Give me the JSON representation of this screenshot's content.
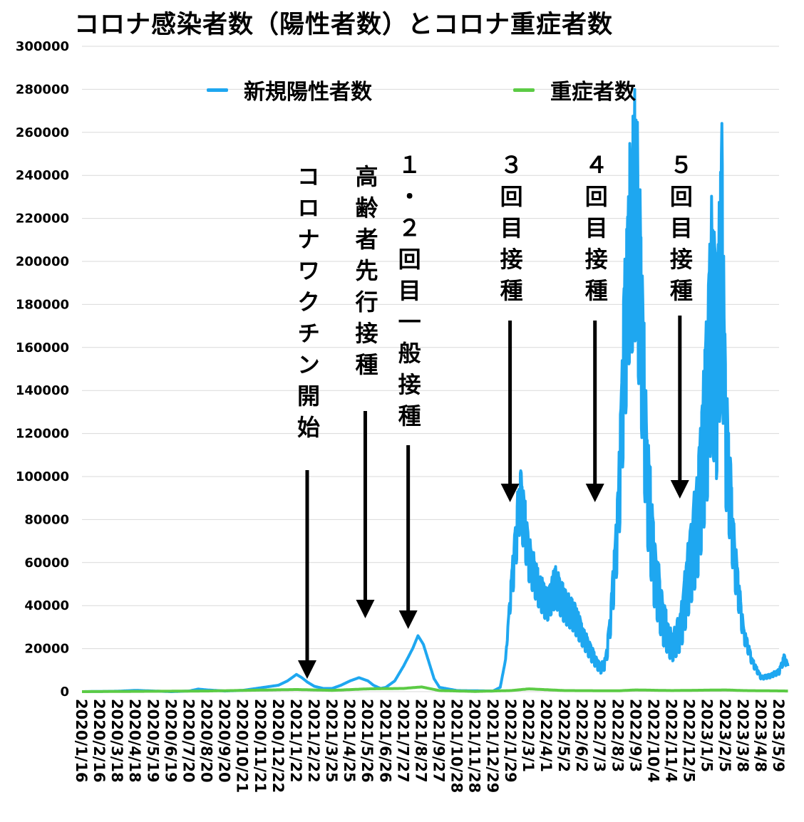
{
  "chart_data": {
    "type": "line",
    "title": "コロナ感染者数（陽性者数）とコロナ重症者数",
    "ylim": [
      0,
      300000
    ],
    "yticks": [
      0,
      20000,
      40000,
      60000,
      80000,
      100000,
      120000,
      140000,
      160000,
      180000,
      200000,
      220000,
      240000,
      260000,
      280000,
      300000
    ],
    "x_tick_labels": [
      "2020/1/16",
      "2020/2/16",
      "2020/3/18",
      "2020/4/18",
      "2020/5/19",
      "2020/6/19",
      "2020/7/20",
      "2020/8/20",
      "2020/9/20",
      "2020/10/21",
      "2020/11/21",
      "2020/12/22",
      "2021/1/22",
      "2021/2/22",
      "2021/3/25",
      "2021/4/25",
      "2021/5/26",
      "2021/6/26",
      "2021/7/27",
      "2021/8/27",
      "2021/9/27",
      "2021/10/28",
      "2021/11/28",
      "2021/12/29",
      "2022/1/29",
      "2022/3/1",
      "2022/4/1",
      "2022/5/2",
      "2022/6/2",
      "2022/7/3",
      "2022/8/3",
      "2022/9/3",
      "2022/10/4",
      "2022/11/4",
      "2022/12/5",
      "2023/1/5",
      "2023/2/5",
      "2023/3/8",
      "2023/4/8",
      "2023/5/9"
    ],
    "grid": true,
    "legend_position": "top",
    "series": [
      {
        "name": "新規陽性者数",
        "color": "#1EA7F0",
        "points": [
          [
            0,
            0
          ],
          [
            2,
            200
          ],
          [
            3,
            600
          ],
          [
            4,
            300
          ],
          [
            5,
            0
          ],
          [
            6,
            300
          ],
          [
            6.5,
            1200
          ],
          [
            7,
            800
          ],
          [
            8,
            300
          ],
          [
            9,
            600
          ],
          [
            10,
            1800
          ],
          [
            11,
            3000
          ],
          [
            11.5,
            5000
          ],
          [
            12,
            8000
          ],
          [
            12.3,
            6500
          ],
          [
            12.6,
            4500
          ],
          [
            13,
            2500
          ],
          [
            13.5,
            1500
          ],
          [
            14,
            1500
          ],
          [
            14.5,
            3000
          ],
          [
            15,
            5000
          ],
          [
            15.5,
            6500
          ],
          [
            16,
            5000
          ],
          [
            16.3,
            3000
          ],
          [
            16.7,
            1500
          ],
          [
            17,
            2000
          ],
          [
            17.5,
            5000
          ],
          [
            18,
            12000
          ],
          [
            18.5,
            20000
          ],
          [
            18.8,
            26000
          ],
          [
            19.1,
            22000
          ],
          [
            19.4,
            14000
          ],
          [
            19.7,
            6000
          ],
          [
            20,
            2000
          ],
          [
            21,
            500
          ],
          [
            23,
            300
          ],
          [
            23.4,
            2000
          ],
          [
            23.7,
            15000
          ],
          [
            24,
            50000
          ],
          [
            24.2,
            70000
          ],
          [
            24.5,
            100000
          ],
          [
            24.7,
            90000
          ],
          [
            25,
            70000
          ],
          [
            25.5,
            55000
          ],
          [
            26,
            45000
          ],
          [
            26.5,
            55000
          ],
          [
            27,
            45000
          ],
          [
            27.5,
            40000
          ],
          [
            28,
            30000
          ],
          [
            28.5,
            20000
          ],
          [
            29,
            12000
          ],
          [
            29.3,
            15000
          ],
          [
            29.6,
            40000
          ],
          [
            30,
            90000
          ],
          [
            30.3,
            170000
          ],
          [
            30.6,
            235000
          ],
          [
            31,
            262000
          ],
          [
            31.3,
            200000
          ],
          [
            31.6,
            120000
          ],
          [
            32,
            70000
          ],
          [
            32.5,
            40000
          ],
          [
            33,
            25000
          ],
          [
            33.5,
            35000
          ],
          [
            34,
            70000
          ],
          [
            34.5,
            100000
          ],
          [
            35,
            165000
          ],
          [
            35.2,
            210000
          ],
          [
            35.5,
            180000
          ],
          [
            35.8,
            245000
          ],
          [
            36,
            140000
          ],
          [
            36.5,
            70000
          ],
          [
            37,
            30000
          ],
          [
            37.5,
            15000
          ],
          [
            38,
            7000
          ],
          [
            38.5,
            8000
          ],
          [
            39,
            10000
          ],
          [
            39.3,
            17000
          ],
          [
            39.5,
            12000
          ]
        ],
        "noise": [
          [
            23.6,
            0.0
          ],
          [
            24.1,
            0.25
          ],
          [
            27.5,
            0.3
          ],
          [
            29.6,
            0.3
          ],
          [
            32.5,
            0.45
          ],
          [
            35.5,
            0.45
          ],
          [
            36.5,
            0.3
          ],
          [
            37.2,
            0.2
          ],
          [
            39.5,
            0.2
          ]
        ]
      },
      {
        "name": "重症者数",
        "color": "#5CCB45",
        "points": [
          [
            0,
            0
          ],
          [
            7,
            300
          ],
          [
            12,
            1000
          ],
          [
            14,
            600
          ],
          [
            16,
            1300
          ],
          [
            18,
            1500
          ],
          [
            19,
            2200
          ],
          [
            20,
            500
          ],
          [
            22,
            100
          ],
          [
            24,
            500
          ],
          [
            25,
            1300
          ],
          [
            27,
            500
          ],
          [
            30,
            400
          ],
          [
            31,
            800
          ],
          [
            33,
            500
          ],
          [
            35,
            700
          ],
          [
            36,
            800
          ],
          [
            37,
            500
          ],
          [
            39.5,
            300
          ]
        ]
      }
    ],
    "annotations": [
      {
        "label": "コロナワクチン開始",
        "x": 12.6
      },
      {
        "label": "高齢者先行接種",
        "x": 15.85
      },
      {
        "label": "１・２回目一般接種",
        "x": 18.25
      },
      {
        "label": "３回目接種",
        "x": 23.95
      },
      {
        "label": "４回目接種",
        "x": 28.7
      },
      {
        "label": "５回目接種",
        "x": 33.45
      }
    ]
  }
}
